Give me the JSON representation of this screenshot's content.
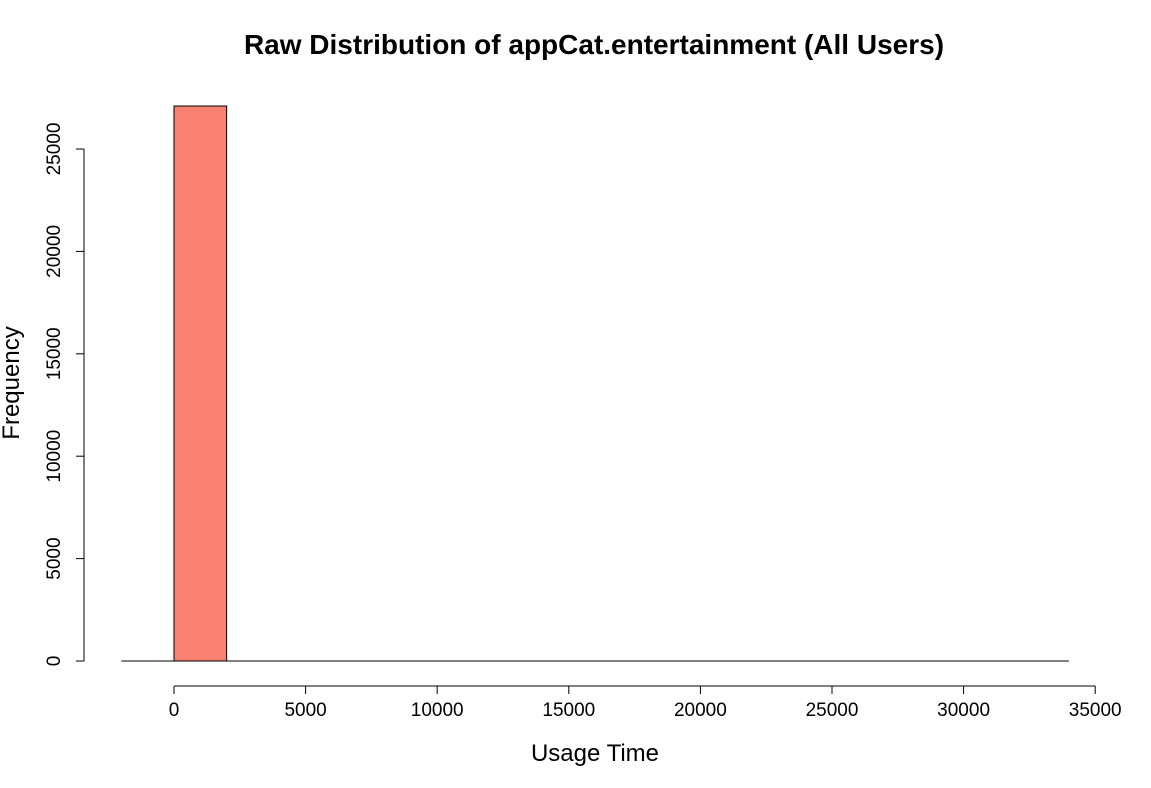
{
  "chart_data": {
    "type": "bar",
    "subtype": "histogram",
    "title": "Raw Distribution of appCat.entertainment (All Users)",
    "xlabel": "Usage Time",
    "ylabel": "Frequency",
    "bins": [
      {
        "x0": 0,
        "x1": 2000,
        "count": 27100
      },
      {
        "x0": 2000,
        "x1": 4000,
        "count": 0
      },
      {
        "x0": 4000,
        "x1": 6000,
        "count": 0
      },
      {
        "x0": 6000,
        "x1": 8000,
        "count": 0
      },
      {
        "x0": 8000,
        "x1": 10000,
        "count": 0
      },
      {
        "x0": 10000,
        "x1": 12000,
        "count": 0
      },
      {
        "x0": 12000,
        "x1": 14000,
        "count": 0
      },
      {
        "x0": 14000,
        "x1": 16000,
        "count": 0
      },
      {
        "x0": 16000,
        "x1": 18000,
        "count": 0
      },
      {
        "x0": 18000,
        "x1": 20000,
        "count": 0
      },
      {
        "x0": 20000,
        "x1": 22000,
        "count": 0
      },
      {
        "x0": 22000,
        "x1": 24000,
        "count": 0
      },
      {
        "x0": 24000,
        "x1": 26000,
        "count": 0
      },
      {
        "x0": 26000,
        "x1": 28000,
        "count": 0
      },
      {
        "x0": 28000,
        "x1": 30000,
        "count": 0
      },
      {
        "x0": 30000,
        "x1": 32000,
        "count": 0
      }
    ],
    "xlim": [
      -2000,
      34000
    ],
    "ylim": [
      0,
      27100
    ],
    "xticks": [
      0,
      5000,
      10000,
      15000,
      20000,
      25000,
      30000,
      35000
    ],
    "xtick_labels": [
      "0",
      "5000",
      "10000",
      "15000",
      "20000",
      "25000",
      "30000",
      "35000"
    ],
    "yticks": [
      0,
      5000,
      10000,
      15000,
      20000,
      25000
    ],
    "ytick_labels": [
      "0",
      "5000",
      "10000",
      "15000",
      "20000",
      "25000"
    ],
    "bar_color": "#fa8072",
    "grid": false,
    "legend": "none"
  }
}
